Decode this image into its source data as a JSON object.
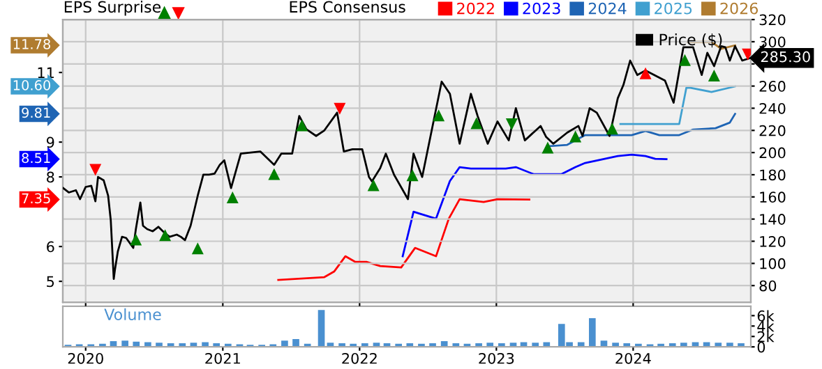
{
  "chart_data": [
    {
      "type": "line",
      "xlim": [
        "2019-11-01",
        "2024-11-10"
      ],
      "xticks": [
        {
          "value": "2020-01-01",
          "label": null
        },
        {
          "value": "2021-01-01",
          "label": null
        },
        {
          "value": "2022-01-01",
          "label": null
        },
        {
          "value": "2023-01-01",
          "label": null
        },
        {
          "value": "2024-01-01",
          "label": null
        }
      ],
      "ylim": [
        4.4,
        12.52
      ],
      "yticks": [
        5,
        6,
        8,
        9,
        11
      ],
      "y2lim": [
        65,
        320
      ],
      "y2ticks": [
        80,
        100,
        120,
        140,
        160,
        180,
        200,
        220,
        240,
        260,
        {
          "value": 280,
          "label": null
        },
        300,
        320
      ],
      "tick_labels": "y",
      "grid": true,
      "legend": "top",
      "annotations": [
        "EPS Surprise",
        "EPS Consensus",
        "11.78",
        "10.60",
        "9.81",
        "8.51",
        "7.35"
      ],
      "series": [
        {
          "name": "Price ($)",
          "color": "#000000",
          "axis": "y2",
          "x": [
            "2019-11-02",
            "2019-11-17",
            "2019-12-06",
            "2019-12-17",
            "2020-01-01",
            "2020-01-16",
            "2020-01-27",
            "2020-02-03",
            "2020-02-18",
            "2020-03-01",
            "2020-03-08",
            "2020-03-16",
            "2020-03-19",
            "2020-03-27",
            "2020-04-07",
            "2020-04-18",
            "2020-05-07",
            "2020-05-14",
            "2020-05-26",
            "2020-06-02",
            "2020-06-13",
            "2020-06-28",
            "2020-07-13",
            "2020-07-28",
            "2020-08-12",
            "2020-08-31",
            "2020-09-11",
            "2020-09-22",
            "2020-10-07",
            "2020-10-26",
            "2020-11-10",
            "2020-11-25",
            "2020-12-10",
            "2020-12-24",
            "2021-01-05",
            "2021-01-23",
            "2021-02-18",
            "2021-04-11",
            "2021-05-18",
            "2021-06-06",
            "2021-07-05",
            "2021-07-24",
            "2021-08-12",
            "2021-09-07",
            "2021-09-29",
            "2021-11-02",
            "2021-11-20",
            "2021-12-13",
            "2022-01-08",
            "2022-01-26",
            "2022-02-03",
            "2022-02-25",
            "2022-03-12",
            "2022-04-03",
            "2022-05-10",
            "2022-05-25",
            "2022-06-17",
            "2022-08-08",
            "2022-08-30",
            "2022-09-25",
            "2022-10-25",
            "2022-11-12",
            "2022-12-09",
            "2023-01-04",
            "2023-02-03",
            "2023-02-22",
            "2023-03-18",
            "2023-04-29",
            "2023-05-14",
            "2023-06-02",
            "2023-07-09",
            "2023-08-08",
            "2023-08-19",
            "2023-09-07",
            "2023-09-26",
            "2023-10-30",
            "2023-11-21",
            "2023-12-06",
            "2023-12-24",
            "2024-01-12",
            "2024-02-03",
            "2024-03-26",
            "2024-04-18",
            "2024-05-14",
            "2024-06-09",
            "2024-07-02",
            "2024-07-17",
            "2024-08-04",
            "2024-08-23",
            "2024-09-03",
            "2024-09-15",
            "2024-09-29",
            "2024-10-18",
            "2024-11-09"
          ],
          "values": [
            168,
            164,
            166,
            158,
            169,
            170,
            156,
            178,
            175,
            161,
            139,
            86,
            94,
            111,
            124,
            123,
            114,
            131,
            155,
            134,
            131,
            129,
            133,
            128,
            124,
            126,
            124,
            121,
            134,
            161,
            180,
            180,
            181,
            189,
            193,
            168,
            199,
            201,
            189,
            199,
            199,
            233,
            221,
            215,
            220,
            236,
            201,
            203,
            203,
            178,
            174,
            186,
            199,
            180,
            158,
            199,
            178,
            264,
            253,
            208,
            253,
            233,
            208,
            228,
            211,
            240,
            211,
            224,
            214,
            208,
            218,
            224,
            215,
            240,
            236,
            215,
            249,
            261,
            283,
            270,
            274,
            265,
            245,
            295,
            295,
            270,
            290,
            278,
            296,
            295,
            283,
            296,
            283,
            285.3
          ],
          "value_labels": [
            null,
            null,
            null,
            null,
            null,
            null,
            null,
            null,
            null,
            null,
            null,
            null,
            null,
            null,
            null,
            null,
            null,
            null,
            null,
            null,
            null,
            null,
            null,
            null,
            null,
            null,
            null,
            null,
            null,
            null,
            null,
            null,
            null,
            null,
            null,
            null,
            null,
            null,
            null,
            null,
            null,
            null,
            null,
            null,
            null,
            null,
            null,
            null,
            null,
            null,
            null,
            null,
            null,
            null,
            null,
            null,
            null,
            null,
            null,
            null,
            null,
            null,
            null,
            null,
            null,
            null,
            null,
            null,
            null,
            null,
            null,
            null,
            null,
            null,
            null,
            null,
            null,
            null,
            null,
            null,
            null,
            null,
            null,
            null,
            null,
            null,
            null,
            null,
            null,
            null,
            null,
            null,
            null,
            "285.30"
          ]
        },
        {
          "name": "2022",
          "color": "#ff0000",
          "axis": "y",
          "x": [
            "2021-05-29",
            "2021-09-29",
            "2021-10-25",
            "2021-11-24",
            "2021-12-20",
            "2022-01-19",
            "2022-02-25",
            "2022-04-22",
            "2022-05-29",
            "2022-07-24",
            "2022-08-27",
            "2022-09-25",
            "2022-11-28",
            "2023-01-04",
            "2023-03-30"
          ],
          "values": [
            5.04,
            5.12,
            5.28,
            5.72,
            5.56,
            5.56,
            5.44,
            5.4,
            5.96,
            5.72,
            6.8,
            7.36,
            7.28,
            7.36,
            7.35
          ]
        },
        {
          "name": "2023",
          "color": "#0000ff",
          "axis": "y",
          "x": [
            "2022-04-26",
            "2022-05-25",
            "2022-07-24",
            "2022-08-30",
            "2022-09-25",
            "2022-10-25",
            "2023-01-26",
            "2023-02-22",
            "2023-04-10",
            "2023-06-24",
            "2023-07-31",
            "2023-08-26",
            "2023-11-21",
            "2023-12-28",
            "2024-02-03",
            "2024-02-29",
            "2024-03-30"
          ],
          "values": [
            5.72,
            7.0,
            6.8,
            7.88,
            8.28,
            8.24,
            8.24,
            8.28,
            8.08,
            8.08,
            8.28,
            8.4,
            8.6,
            8.64,
            8.6,
            8.52,
            8.51
          ]
        },
        {
          "name": "2024",
          "color": "#1e64b4",
          "axis": "y",
          "x": [
            "2023-05-18",
            "2023-07-09",
            "2023-08-26",
            "2023-12-28",
            "2024-02-03",
            "2024-03-11",
            "2024-05-03",
            "2024-06-09",
            "2024-08-08",
            "2024-09-15",
            "2024-09-29"
          ],
          "values": [
            8.88,
            8.92,
            9.2,
            9.2,
            9.32,
            9.2,
            9.2,
            9.36,
            9.4,
            9.56,
            9.81
          ]
        },
        {
          "name": "2025",
          "color": "#40a0d0",
          "axis": "y",
          "x": [
            "2023-11-28",
            "2024-05-03",
            "2024-05-22",
            "2024-06-02",
            "2024-07-28",
            "2024-09-29"
          ],
          "values": [
            9.52,
            9.52,
            10.56,
            10.56,
            10.44,
            10.6
          ]
        },
        {
          "name": "2026",
          "color": "#b07c30",
          "axis": "y",
          "x": [
            "2024-05-26",
            "2024-07-28",
            "2024-08-23",
            "2024-09-29"
          ],
          "values": [
            11.88,
            11.88,
            11.68,
            11.78
          ]
        },
        {
          "type": "scatter",
          "marker": "triangle",
          "color": "#008000",
          "axis": "y2",
          "x": [
            "2020-05-14",
            "2020-07-31",
            "2020-10-26",
            "2021-01-27",
            "2021-05-18",
            "2021-07-31",
            "2022-02-07",
            "2022-05-22",
            "2022-07-31",
            "2022-11-09",
            "2023-02-11",
            "2023-05-18",
            "2023-07-31",
            "2023-11-06",
            "2024-05-18",
            "2024-08-04"
          ],
          "values": [
            121,
            125,
            113,
            159,
            180,
            224,
            170,
            179,
            233,
            226,
            226,
            204,
            214,
            221,
            283,
            269
          ]
        },
        {
          "type": "scatter",
          "marker": "triangle",
          "color": "#ff0000",
          "axis": "y2",
          "x": [
            "2020-01-27",
            "2021-11-09",
            "2024-02-03",
            "2024-11-02"
          ],
          "values": [
            185,
            240,
            271,
            289
          ]
        }
      ]
    },
    {
      "type": "bar",
      "xlim": [
        "2019-11-01",
        "2024-11-10"
      ],
      "xticks": [
        {
          "value": "2020-01-01",
          "label": "2020"
        },
        {
          "value": "2021-01-01",
          "label": "2021"
        },
        {
          "value": "2022-01-01",
          "label": "2022"
        },
        {
          "value": "2023-01-01",
          "label": "2023"
        },
        {
          "value": "2024-01-01",
          "label": "2024"
        }
      ],
      "ylim": [
        0,
        7800
      ],
      "yticks": [
        0,
        {
          "value": 2000,
          "label": "2k"
        },
        {
          "value": 4000,
          "label": "4k"
        },
        {
          "value": 6000,
          "label": "6k"
        }
      ],
      "annotations": [
        "Volume"
      ],
      "series": [
        {
          "color": "#4a90d0",
          "x": [
            "2019-11-15",
            "2019-12-15",
            "2020-01-15",
            "2020-02-15",
            "2020-03-15",
            "2020-04-15",
            "2020-05-15",
            "2020-06-15",
            "2020-07-15",
            "2020-08-15",
            "2020-09-15",
            "2020-10-15",
            "2020-11-15",
            "2020-12-15",
            "2021-01-15",
            "2021-02-15",
            "2021-03-15",
            "2021-04-15",
            "2021-05-15",
            "2021-06-15",
            "2021-07-15",
            "2021-08-15",
            "2021-09-21",
            "2021-10-15",
            "2021-11-15",
            "2021-12-15",
            "2022-01-15",
            "2022-02-15",
            "2022-03-15",
            "2022-04-15",
            "2022-05-15",
            "2022-06-15",
            "2022-07-15",
            "2022-08-15",
            "2022-09-15",
            "2022-10-15",
            "2022-11-15",
            "2022-12-15",
            "2023-01-15",
            "2023-02-15",
            "2023-03-15",
            "2023-04-15",
            "2023-05-15",
            "2023-06-24",
            "2023-07-15",
            "2023-08-15",
            "2023-09-14",
            "2023-10-15",
            "2023-11-15",
            "2023-12-15",
            "2024-01-15",
            "2024-02-15",
            "2024-03-15",
            "2024-04-15",
            "2024-05-15",
            "2024-06-15",
            "2024-07-15",
            "2024-08-15",
            "2024-09-15",
            "2024-10-15"
          ],
          "values": [
            400,
            500,
            500,
            600,
            1100,
            1200,
            1000,
            900,
            800,
            700,
            700,
            800,
            900,
            700,
            600,
            500,
            400,
            400,
            500,
            1200,
            1500,
            600,
            7100,
            800,
            700,
            600,
            700,
            800,
            700,
            600,
            700,
            600,
            700,
            1100,
            700,
            600,
            700,
            800,
            700,
            800,
            900,
            800,
            900,
            4400,
            900,
            900,
            5500,
            1200,
            800,
            700,
            600,
            500,
            600,
            700,
            800,
            900,
            900,
            800,
            800,
            700
          ]
        }
      ]
    }
  ]
}
